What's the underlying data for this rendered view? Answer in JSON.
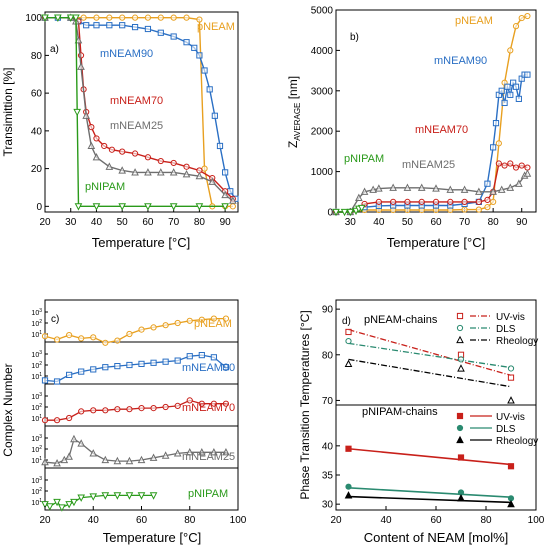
{
  "colors": {
    "pNEAM": "#e8a020",
    "mNEAM90": "#2a6fc4",
    "mNEAM70": "#c8201a",
    "mNEAM25": "#6e6e6e",
    "pNIPAM": "#2a9a1a",
    "rheology": "#000000"
  },
  "panels": {
    "a": {
      "tag": "a)",
      "xlabel": "Temperature [°C]",
      "ylabel": "Transimittion [%]"
    },
    "b": {
      "tag": "b)",
      "xlabel": "Temperature [°C]",
      "ylabel": "Z_AVERAGE [nm]"
    },
    "c": {
      "tag": "c)",
      "xlabel": "Temperature [°C]",
      "ylabel": "Complex Number"
    },
    "d": {
      "tag": "d)",
      "xlabel": "Content of NEAM [mol%]",
      "ylabel": "Phase Transition Temperatures [°C]",
      "group_top": "pNEAM-chains",
      "group_bottom": "pNIPAM-chains"
    }
  },
  "chart_data": [
    {
      "panel": "a",
      "type": "line",
      "xlabel": "Temperature [°C]",
      "ylabel": "Transimittion [%]",
      "xlim": [
        20,
        95
      ],
      "ylim": [
        -3,
        103
      ],
      "xticks": [
        20,
        30,
        40,
        50,
        60,
        70,
        80,
        90
      ],
      "yticks": [
        0,
        20,
        40,
        60,
        80,
        100
      ],
      "series": [
        {
          "name": "pNEAM",
          "x": [
            20,
            25,
            30,
            35,
            40,
            45,
            50,
            55,
            60,
            65,
            70,
            75,
            80,
            82,
            85,
            90,
            93
          ],
          "y": [
            100,
            100,
            100,
            100,
            100,
            100,
            100,
            100,
            100,
            100,
            100,
            100,
            99,
            20,
            0,
            0,
            0
          ]
        },
        {
          "name": "mNEAM90",
          "x": [
            20,
            25,
            30,
            33,
            36,
            40,
            45,
            50,
            55,
            60,
            65,
            70,
            75,
            78,
            80,
            82,
            84,
            86,
            88,
            90,
            92,
            94
          ],
          "y": [
            100,
            100,
            100,
            98,
            96,
            96,
            96,
            96,
            95,
            94,
            92,
            90,
            87,
            84,
            80,
            72,
            62,
            48,
            32,
            18,
            8,
            4
          ]
        },
        {
          "name": "mNEAM70",
          "x": [
            20,
            30,
            33,
            34,
            35,
            36,
            38,
            40,
            43,
            46,
            50,
            55,
            60,
            65,
            70,
            75,
            80,
            85,
            90,
            93
          ],
          "y": [
            100,
            100,
            98,
            80,
            62,
            50,
            42,
            36,
            32,
            30,
            29,
            28,
            26,
            24,
            23,
            21,
            19,
            15,
            8,
            4
          ]
        },
        {
          "name": "mNEAM25",
          "x": [
            20,
            30,
            32,
            33,
            34,
            36,
            38,
            40,
            45,
            50,
            55,
            60,
            65,
            70,
            75,
            80,
            85,
            90,
            93
          ],
          "y": [
            100,
            100,
            98,
            88,
            74,
            48,
            32,
            26,
            21,
            19,
            18,
            18,
            18,
            18,
            17,
            16,
            13,
            6,
            3
          ]
        },
        {
          "name": "pNIPAM",
          "x": [
            20,
            25,
            30,
            32,
            32.5,
            33,
            40,
            50,
            60,
            70,
            80,
            90
          ],
          "y": [
            100,
            100,
            100,
            100,
            50,
            0,
            0,
            0,
            0,
            0,
            0,
            0
          ]
        }
      ]
    },
    {
      "panel": "b",
      "type": "line",
      "xlabel": "Temperature [°C]",
      "ylabel": "Z_AVERAGE [nm]",
      "xlim": [
        25,
        95
      ],
      "ylim": [
        0,
        5000
      ],
      "xticks": [
        30,
        40,
        50,
        60,
        70,
        80,
        90
      ],
      "yticks": [
        0,
        1000,
        2000,
        3000,
        4000,
        5000
      ],
      "series": [
        {
          "name": "pNEAM",
          "x": [
            25,
            30,
            35,
            40,
            45,
            50,
            55,
            60,
            65,
            70,
            75,
            78,
            80,
            82,
            84,
            86,
            88,
            90,
            92
          ],
          "y": [
            0,
            0,
            50,
            50,
            50,
            50,
            50,
            50,
            50,
            60,
            60,
            120,
            250,
            1700,
            3200,
            4000,
            4600,
            4800,
            4850
          ]
        },
        {
          "name": "mNEAM90",
          "x": [
            25,
            30,
            35,
            40,
            45,
            50,
            55,
            60,
            65,
            70,
            75,
            78,
            80,
            81,
            82,
            83,
            84,
            85,
            86,
            87,
            88,
            89,
            90,
            91,
            92
          ],
          "y": [
            0,
            0,
            120,
            150,
            160,
            160,
            160,
            160,
            160,
            200,
            250,
            700,
            1600,
            2200,
            2900,
            3000,
            2700,
            3100,
            2900,
            3200,
            3100,
            2800,
            3300,
            3400,
            3400
          ]
        },
        {
          "name": "mNEAM70",
          "x": [
            25,
            30,
            35,
            40,
            45,
            50,
            55,
            60,
            65,
            70,
            75,
            78,
            80,
            82,
            84,
            86,
            88,
            90,
            92
          ],
          "y": [
            0,
            0,
            200,
            250,
            250,
            250,
            250,
            250,
            250,
            250,
            250,
            300,
            500,
            1200,
            1150,
            1200,
            1100,
            1150,
            1100
          ]
        },
        {
          "name": "mNEAM25",
          "x": [
            25,
            30,
            33,
            35,
            38,
            40,
            45,
            50,
            55,
            60,
            65,
            70,
            75,
            80,
            83,
            86,
            89,
            91,
            92
          ],
          "y": [
            0,
            0,
            350,
            500,
            550,
            580,
            600,
            600,
            600,
            580,
            550,
            550,
            500,
            500,
            550,
            600,
            700,
            900,
            950
          ]
        },
        {
          "name": "pNIPAM",
          "x": [
            25,
            28,
            30,
            32,
            33,
            34
          ],
          "y": [
            0,
            0,
            0,
            30,
            80,
            100
          ]
        }
      ]
    },
    {
      "panel": "c",
      "type": "line",
      "xlabel": "Temperature [°C]",
      "ylabel": "Complex Number",
      "xlim": [
        20,
        100
      ],
      "xticks": [
        20,
        40,
        60,
        80,
        100
      ],
      "series": [
        {
          "name": "pNEAM",
          "x": [
            20,
            25,
            30,
            35,
            40,
            45,
            50,
            55,
            60,
            65,
            70,
            75,
            80,
            85,
            90,
            95
          ],
          "y": [
            0.8,
            0.5,
            0.9,
            0.6,
            0.7,
            0.2,
            0.4,
            1.0,
            1.4,
            1.6,
            1.8,
            2.0,
            2.2,
            2.3,
            2.4,
            2.4
          ]
        },
        {
          "name": "mNEAM90",
          "x": [
            20,
            25,
            30,
            35,
            40,
            45,
            50,
            55,
            60,
            65,
            70,
            75,
            80,
            85,
            90,
            95
          ],
          "y": [
            0.6,
            0.5,
            1.1,
            1.4,
            1.6,
            1.8,
            1.9,
            2.0,
            2.1,
            2.2,
            2.3,
            2.4,
            2.8,
            2.9,
            2.7,
            1.8
          ]
        },
        {
          "name": "mNEAM70",
          "x": [
            20,
            25,
            30,
            35,
            40,
            45,
            50,
            55,
            60,
            65,
            70,
            75,
            80,
            85,
            90,
            95
          ],
          "y": [
            0.8,
            0.8,
            1.0,
            1.6,
            1.7,
            1.7,
            1.8,
            1.8,
            1.9,
            1.9,
            2.0,
            2.1,
            2.6,
            2.3,
            2.3,
            2.3
          ]
        },
        {
          "name": "mNEAM25",
          "x": [
            20,
            25,
            28,
            30,
            32,
            35,
            40,
            45,
            50,
            55,
            60,
            65,
            70,
            75,
            80,
            85,
            90,
            95
          ],
          "y": [
            0.8,
            0.7,
            1.0,
            1.3,
            2.9,
            2.5,
            1.6,
            1.0,
            0.9,
            0.9,
            1.0,
            1.2,
            1.4,
            1.6,
            1.7,
            1.7,
            1.7,
            1.7
          ]
        },
        {
          "name": "pNIPAM",
          "x": [
            20,
            22,
            25,
            27,
            30,
            32,
            35,
            40,
            45,
            50,
            55,
            60,
            65
          ],
          "y": [
            0.8,
            0.6,
            1.0,
            0.5,
            0.8,
            1.0,
            1.4,
            1.5,
            1.6,
            1.6,
            1.6,
            1.6,
            1.6
          ]
        }
      ]
    },
    {
      "panel": "d",
      "type": "scatter",
      "xlabel": "Content of NEAM [mol%]",
      "ylabel": "Phase Transition Temperatures [°C]",
      "xlim": [
        20,
        100
      ],
      "xticks": [
        20,
        40,
        60,
        80,
        100
      ],
      "top_ylim": [
        69,
        92
      ],
      "top_yticks": [
        70,
        80,
        90
      ],
      "bottom_ylim": [
        29,
        47
      ],
      "bottom_yticks": [
        30,
        35,
        40
      ],
      "legend_top": "top-right",
      "legend_bottom": "top-right",
      "series": [
        {
          "group": "pNEAM-chains",
          "name": "UV-vis",
          "x": [
            25,
            70,
            90
          ],
          "y": [
            85,
            80,
            75
          ]
        },
        {
          "group": "pNEAM-chains",
          "name": "DLS",
          "x": [
            25,
            70,
            90
          ],
          "y": [
            83,
            79,
            77
          ]
        },
        {
          "group": "pNEAM-chains",
          "name": "Rheology",
          "x": [
            25,
            70,
            90
          ],
          "y": [
            78,
            77,
            70
          ]
        },
        {
          "group": "pNIPAM-chains",
          "name": "UV-vis",
          "x": [
            25,
            70,
            90
          ],
          "y": [
            39.5,
            38,
            36.5
          ]
        },
        {
          "group": "pNIPAM-chains",
          "name": "DLS",
          "x": [
            25,
            70,
            90
          ],
          "y": [
            33,
            32,
            31
          ]
        },
        {
          "group": "pNIPAM-chains",
          "name": "Rheology",
          "x": [
            25,
            70,
            90
          ],
          "y": [
            31.5,
            31,
            30
          ]
        }
      ],
      "fits": [
        {
          "group": "pNEAM-chains",
          "name": "UV-vis",
          "x": [
            25,
            90
          ],
          "y": [
            85.5,
            75.5
          ],
          "dash": "6,2,1,2"
        },
        {
          "group": "pNEAM-chains",
          "name": "DLS",
          "x": [
            25,
            90
          ],
          "y": [
            82.5,
            77.2
          ],
          "dash": "6,2,1,2"
        },
        {
          "group": "pNEAM-chains",
          "name": "Rheology",
          "x": [
            25,
            90
          ],
          "y": [
            79,
            73
          ],
          "dash": "6,2,1,2"
        },
        {
          "group": "pNIPAM-chains",
          "name": "UV-vis",
          "x": [
            25,
            90
          ],
          "y": [
            39.5,
            36.8
          ],
          "dash": ""
        },
        {
          "group": "pNIPAM-chains",
          "name": "DLS",
          "x": [
            25,
            90
          ],
          "y": [
            32.8,
            31.2
          ],
          "dash": ""
        },
        {
          "group": "pNIPAM-chains",
          "name": "Rheology",
          "x": [
            25,
            90
          ],
          "y": [
            31.3,
            30.3
          ],
          "dash": ""
        }
      ]
    }
  ]
}
